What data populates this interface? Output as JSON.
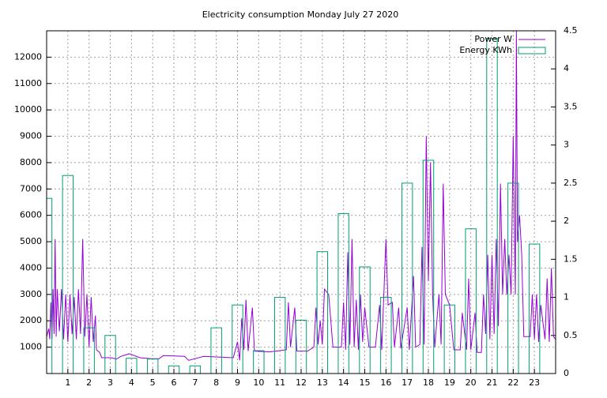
{
  "chart_data": {
    "type": "line",
    "title": "Electricity consumption Monday July 27 2020",
    "xlim": [
      0,
      24
    ],
    "xticks": [
      1,
      2,
      3,
      4,
      5,
      6,
      7,
      8,
      9,
      10,
      11,
      12,
      13,
      14,
      15,
      16,
      17,
      18,
      19,
      20,
      21,
      22,
      23
    ],
    "ylim": [
      0,
      13000
    ],
    "yticks": [
      1000,
      2000,
      3000,
      4000,
      5000,
      6000,
      7000,
      8000,
      9000,
      10000,
      11000,
      12000
    ],
    "y2lim": [
      0,
      4.5
    ],
    "y2ticks": [
      0,
      0.5,
      1,
      1.5,
      2,
      2.5,
      3,
      3.5,
      4,
      4.5
    ],
    "grid": true,
    "legend": "top-right",
    "series": [
      {
        "name": "Power W",
        "color": "#9400d3",
        "x": [
          0.0,
          0.1,
          0.15,
          0.2,
          0.25,
          0.3,
          0.35,
          0.4,
          0.45,
          0.5,
          0.6,
          0.7,
          0.8,
          0.9,
          1.0,
          1.1,
          1.2,
          1.3,
          1.4,
          1.5,
          1.6,
          1.7,
          1.8,
          1.9,
          2.0,
          2.1,
          2.2,
          2.3,
          2.35,
          2.5,
          2.6,
          3.0,
          3.3,
          3.5,
          3.9,
          4.4,
          4.9,
          5.3,
          5.5,
          6.5,
          6.7,
          7.4,
          8.0,
          8.8,
          9.0,
          9.1,
          9.2,
          9.3,
          9.4,
          9.5,
          9.7,
          9.8,
          10.5,
          11.0,
          11.3,
          11.4,
          11.5,
          11.7,
          11.8,
          12.3,
          12.6,
          12.7,
          12.8,
          12.9,
          13.0,
          13.1,
          13.3,
          13.5,
          13.9,
          14.0,
          14.1,
          14.2,
          14.3,
          14.4,
          14.5,
          14.6,
          14.7,
          14.8,
          14.9,
          15.0,
          15.2,
          15.5,
          15.7,
          15.8,
          16.0,
          16.1,
          16.3,
          16.4,
          16.6,
          16.7,
          17.0,
          17.1,
          17.3,
          17.4,
          17.6,
          17.7,
          17.8,
          17.9,
          18.0,
          18.1,
          18.2,
          18.3,
          18.5,
          18.6,
          18.7,
          18.8,
          19.0,
          19.2,
          19.5,
          19.6,
          19.8,
          19.9,
          20.0,
          20.2,
          20.3,
          20.5,
          20.6,
          20.7,
          20.8,
          20.9,
          21.0,
          21.1,
          21.2,
          21.3,
          21.4,
          21.5,
          21.6,
          21.7,
          21.8,
          21.9,
          22.0,
          22.1,
          22.15,
          22.2,
          22.3,
          22.4,
          22.5,
          22.8,
          22.9,
          23.0,
          23.1,
          23.2,
          23.3,
          23.5,
          23.6,
          23.7,
          23.8,
          23.9,
          24.0
        ],
        "values": [
          1400,
          1700,
          1300,
          2700,
          1300,
          3200,
          1500,
          5100,
          1400,
          3200,
          1600,
          3200,
          1300,
          3000,
          1200,
          3000,
          1500,
          2900,
          1300,
          3200,
          1500,
          5100,
          1400,
          3000,
          1000,
          2900,
          1200,
          2200,
          900,
          800,
          600,
          600,
          550,
          650,
          750,
          600,
          560,
          560,
          680,
          650,
          500,
          650,
          630,
          600,
          1200,
          500,
          2100,
          900,
          2800,
          850,
          2500,
          850,
          820,
          870,
          900,
          2700,
          1000,
          2500,
          850,
          850,
          1000,
          2500,
          1100,
          2000,
          1100,
          3200,
          3000,
          1000,
          1000,
          2700,
          900,
          4600,
          1100,
          5100,
          1000,
          2800,
          900,
          3000,
          1200,
          2500,
          1000,
          1000,
          2600,
          900,
          5100,
          2600,
          2700,
          1000,
          2500,
          950,
          2500,
          900,
          3700,
          1000,
          1100,
          4800,
          1100,
          9000,
          3500,
          8000,
          3000,
          1000,
          3000,
          1100,
          7200,
          3000,
          2600,
          900,
          900,
          2300,
          900,
          3600,
          900,
          2300,
          800,
          800,
          3000,
          1500,
          4500,
          1300,
          4500,
          1500,
          5100,
          1800,
          7200,
          3000,
          5100,
          3000,
          4500,
          3000,
          9000,
          3000,
          13000,
          5000,
          6000,
          4500,
          1400,
          1400,
          3000,
          1300,
          3000,
          1200,
          2600,
          1300,
          3600,
          1200,
          4000,
          1400,
          1300
        ]
      },
      {
        "name": "Energy KWh",
        "color": "#009e73",
        "axis": "y2",
        "style": "boxes",
        "x": [
          0,
          1,
          2,
          3,
          4,
          5,
          6,
          7,
          8,
          9,
          10,
          11,
          12,
          13,
          14,
          15,
          16,
          17,
          18,
          19,
          20,
          21,
          22,
          23
        ],
        "values": [
          2.3,
          2.6,
          0.6,
          0.5,
          0.2,
          0.19,
          0.1,
          0.1,
          0.6,
          0.9,
          0.3,
          1.0,
          0.7,
          1.6,
          2.1,
          1.4,
          1.0,
          2.5,
          2.8,
          0.9,
          1.9,
          4.4,
          2.5,
          1.7
        ]
      }
    ]
  }
}
